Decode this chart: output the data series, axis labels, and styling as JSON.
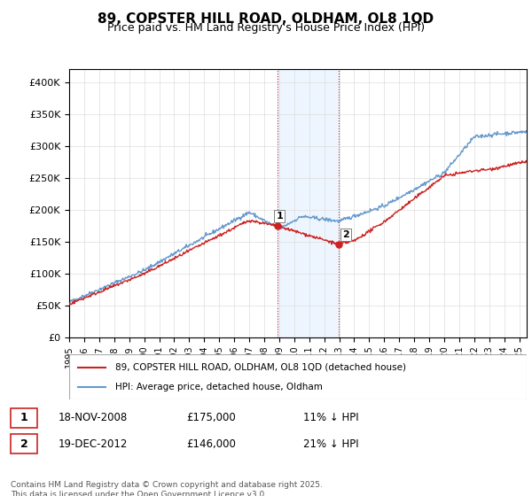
{
  "title": "89, COPSTER HILL ROAD, OLDHAM, OL8 1QD",
  "subtitle": "Price paid vs. HM Land Registry's House Price Index (HPI)",
  "ylabel_ticks": [
    "£0",
    "£50K",
    "£100K",
    "£150K",
    "£200K",
    "£250K",
    "£300K",
    "£350K",
    "£400K"
  ],
  "ytick_values": [
    0,
    50000,
    100000,
    150000,
    200000,
    250000,
    300000,
    350000,
    400000
  ],
  "ylim": [
    0,
    420000
  ],
  "xlim_start": 1995.0,
  "xlim_end": 2025.5,
  "xtick_years": [
    1995,
    1996,
    1997,
    1998,
    1999,
    2000,
    2001,
    2002,
    2003,
    2004,
    2005,
    2006,
    2007,
    2008,
    2009,
    2010,
    2011,
    2012,
    2013,
    2014,
    2015,
    2016,
    2017,
    2018,
    2019,
    2020,
    2021,
    2022,
    2023,
    2024,
    2025
  ],
  "hpi_color": "#6699cc",
  "price_color": "#cc2222",
  "sale1_x": 2008.88,
  "sale1_y": 175000,
  "sale1_label": "1",
  "sale2_x": 2012.96,
  "sale2_y": 146000,
  "sale2_label": "2",
  "shade_x1": 2008.88,
  "shade_x2": 2012.96,
  "shade_color": "#ddeeff",
  "shade_alpha": 0.5,
  "vline_color": "#cc2222",
  "vline_style": ":",
  "legend_label1": "89, COPSTER HILL ROAD, OLDHAM, OL8 1QD (detached house)",
  "legend_label2": "HPI: Average price, detached house, Oldham",
  "annotation1": "18-NOV-2008    £175,000    11% ↓ HPI",
  "annotation2": "19-DEC-2012    £146,000    21% ↓ HPI",
  "footnote": "Contains HM Land Registry data © Crown copyright and database right 2025.\nThis data is licensed under the Open Government Licence v3.0.",
  "background_color": "#ffffff",
  "grid_color": "#dddddd"
}
